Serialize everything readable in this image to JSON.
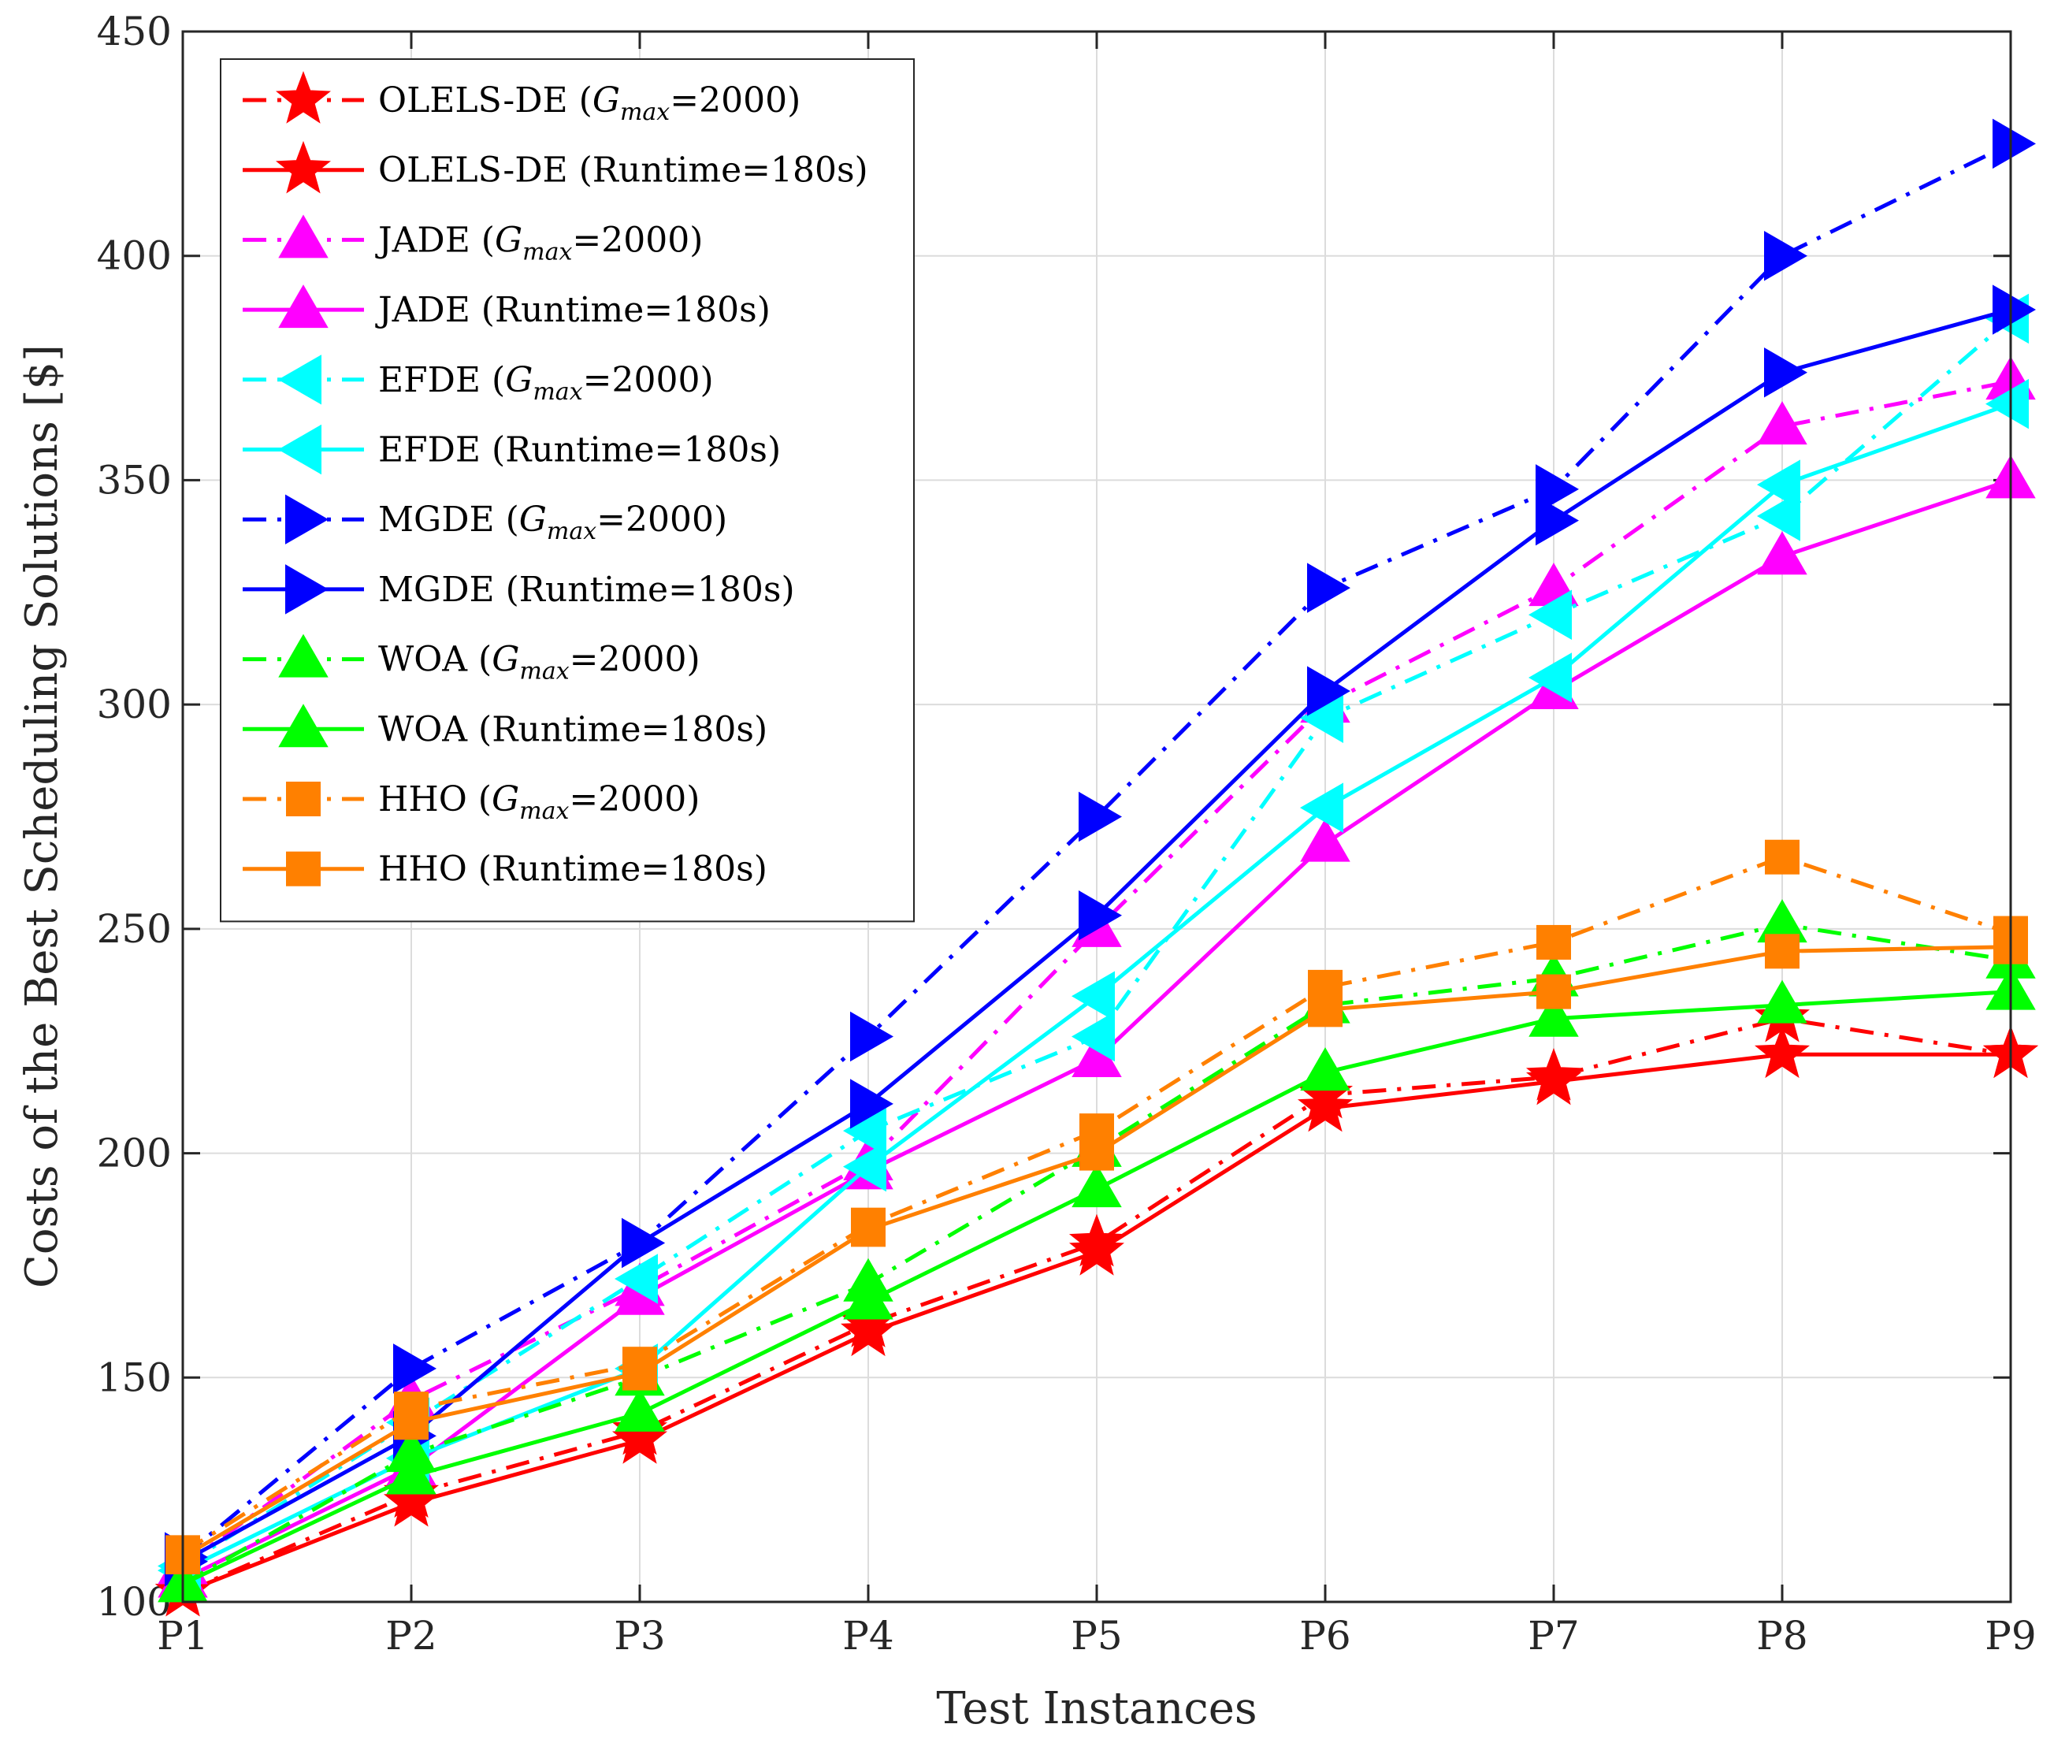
{
  "chart_data": {
    "type": "line",
    "title": "",
    "xlabel": "Test Instances",
    "ylabel": "Costs of the Best Scheduling Solutions [$]",
    "categories": [
      "P1",
      "P2",
      "P3",
      "P4",
      "P5",
      "P6",
      "P7",
      "P8",
      "P9"
    ],
    "ylim": [
      100,
      450
    ],
    "yticks": [
      "100",
      "150",
      "200",
      "250",
      "300",
      "350",
      "400",
      "450"
    ],
    "grid": true,
    "legend_position": "top-left",
    "series": [
      {
        "name": "OLELS-DE (G_max=2000)",
        "label_main": "OLELS-DE (",
        "label_var": "G",
        "label_sub": "max",
        "label_tail": "=2000)",
        "color": "#ff0000",
        "style": "dashdot",
        "marker": "star",
        "values": [
          102,
          124,
          138,
          162,
          180,
          213,
          217,
          230,
          222
        ]
      },
      {
        "name": "OLELS-DE (Runtime=180s)",
        "label_main": "OLELS-DE (Runtime=180s)",
        "label_var": "",
        "label_sub": "",
        "label_tail": "",
        "color": "#ff0000",
        "style": "solid",
        "marker": "star",
        "values": [
          102,
          122,
          136,
          160,
          178,
          210,
          216,
          222,
          222
        ]
      },
      {
        "name": "JADE (G_max=2000)",
        "label_main": "JADE (",
        "label_var": "G",
        "label_sub": "max",
        "label_tail": "=2000)",
        "color": "#ff00ff",
        "style": "dashdot",
        "marker": "triangle-up",
        "values": [
          108,
          145,
          170,
          198,
          250,
          300,
          326,
          362,
          372
        ]
      },
      {
        "name": "JADE (Runtime=180s)",
        "label_main": "JADE (Runtime=180s)",
        "label_var": "",
        "label_sub": "",
        "label_tail": "",
        "color": "#ff00ff",
        "style": "solid",
        "marker": "triangle-up",
        "values": [
          105,
          130,
          168,
          196,
          221,
          269,
          303,
          333,
          350
        ]
      },
      {
        "name": "EFDE (G_max=2000)",
        "label_main": "EFDE (",
        "label_var": "G",
        "label_sub": "max",
        "label_tail": "=2000)",
        "color": "#00ffff",
        "style": "dashdot",
        "marker": "triangle-left",
        "values": [
          108,
          140,
          172,
          205,
          226,
          297,
          320,
          342,
          386
        ]
      },
      {
        "name": "EFDE (Runtime=180s)",
        "label_main": "EFDE (Runtime=180s)",
        "label_var": "",
        "label_sub": "",
        "label_tail": "",
        "color": "#00ffff",
        "style": "solid",
        "marker": "triangle-left",
        "values": [
          107,
          132,
          152,
          197,
          235,
          277,
          306,
          349,
          367
        ]
      },
      {
        "name": "MGDE (G_max=2000)",
        "label_main": "MGDE (",
        "label_var": "G",
        "label_sub": "max",
        "label_tail": "=2000)",
        "color": "#0000ff",
        "style": "dashdot",
        "marker": "triangle-right",
        "values": [
          110,
          152,
          180,
          226,
          275,
          326,
          348,
          400,
          425
        ]
      },
      {
        "name": "MGDE (Runtime=180s)",
        "label_main": "MGDE (Runtime=180s)",
        "label_var": "",
        "label_sub": "",
        "label_tail": "",
        "color": "#0000ff",
        "style": "solid",
        "marker": "triangle-right",
        "values": [
          109,
          137,
          180,
          211,
          253,
          303,
          341,
          374,
          388
        ]
      },
      {
        "name": "WOA (G_max=2000)",
        "label_main": "WOA (",
        "label_var": "G",
        "label_sub": "max",
        "label_tail": "=2000)",
        "color": "#00ff00",
        "style": "dashdot",
        "marker": "triangle-up",
        "values": [
          104,
          133,
          150,
          171,
          201,
          233,
          239,
          251,
          243
        ]
      },
      {
        "name": "WOA (Runtime=180s)",
        "label_main": "WOA (Runtime=180s)",
        "label_var": "",
        "label_sub": "",
        "label_tail": "",
        "color": "#00ff00",
        "style": "solid",
        "marker": "triangle-up",
        "values": [
          104,
          128,
          142,
          167,
          192,
          218,
          230,
          233,
          236
        ]
      },
      {
        "name": "HHO (G_max=2000)",
        "label_main": "HHO (",
        "label_var": "G",
        "label_sub": "max",
        "label_tail": "=2000)",
        "color": "#ff8000",
        "style": "dashdot",
        "marker": "square",
        "values": [
          111,
          143,
          153,
          184,
          205,
          237,
          247,
          266,
          249
        ]
      },
      {
        "name": "HHO (Runtime=180s)",
        "label_main": "HHO (Runtime=180s)",
        "label_var": "",
        "label_sub": "",
        "label_tail": "",
        "color": "#ff8000",
        "style": "solid",
        "marker": "square",
        "values": [
          110,
          140,
          151,
          183,
          200,
          232,
          236,
          245,
          246
        ]
      }
    ]
  }
}
